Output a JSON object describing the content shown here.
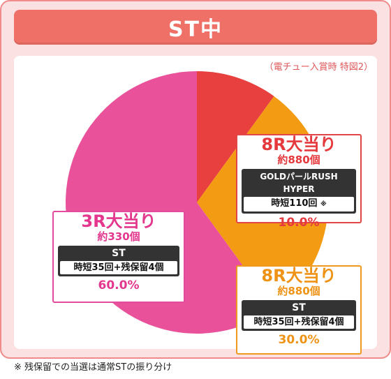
{
  "title": "ST中",
  "condition_note": "（電チュー入賞時 特図2）",
  "footnote": "※ 残保留での当選は通常STの振り分け",
  "labels": {
    "hyper": {
      "head": "8R大当り",
      "sub": "約880個",
      "mode": "GOLDパールRUSH HYPER",
      "detail": "時短110回",
      "detail_mark": "※",
      "rate": "10.0%"
    },
    "three_r": {
      "head": "3R大当り",
      "sub": "約330個",
      "mode": "ST",
      "detail": "時短35回+残保留4個",
      "rate": "60.0%"
    },
    "eight_r_st": {
      "head": "8R大当り",
      "sub": "約880個",
      "mode": "ST",
      "detail": "時短35回+残保留4個",
      "rate": "30.0%"
    }
  },
  "colors": {
    "hyper": "#e8403f",
    "eight_r_st": "#f39b12",
    "three_r": "#e9529a",
    "title_bar": "#ee7067",
    "panel_bg": "#fbe1e1"
  },
  "chart_data": {
    "type": "pie",
    "title": "ST中",
    "start_angle_deg": 0,
    "direction": "clockwise",
    "slices": [
      {
        "label": "8R大当り 約880個 GOLDパールRUSH HYPER 時短110回",
        "value": 10.0,
        "color": "#e8403f"
      },
      {
        "label": "8R大当り 約880個 ST 時短35回+残保留4個",
        "value": 30.0,
        "color": "#f39b12"
      },
      {
        "label": "3R大当り 約330個 ST 時短35回+残保留4個",
        "value": 60.0,
        "color": "#e9529a"
      }
    ]
  }
}
